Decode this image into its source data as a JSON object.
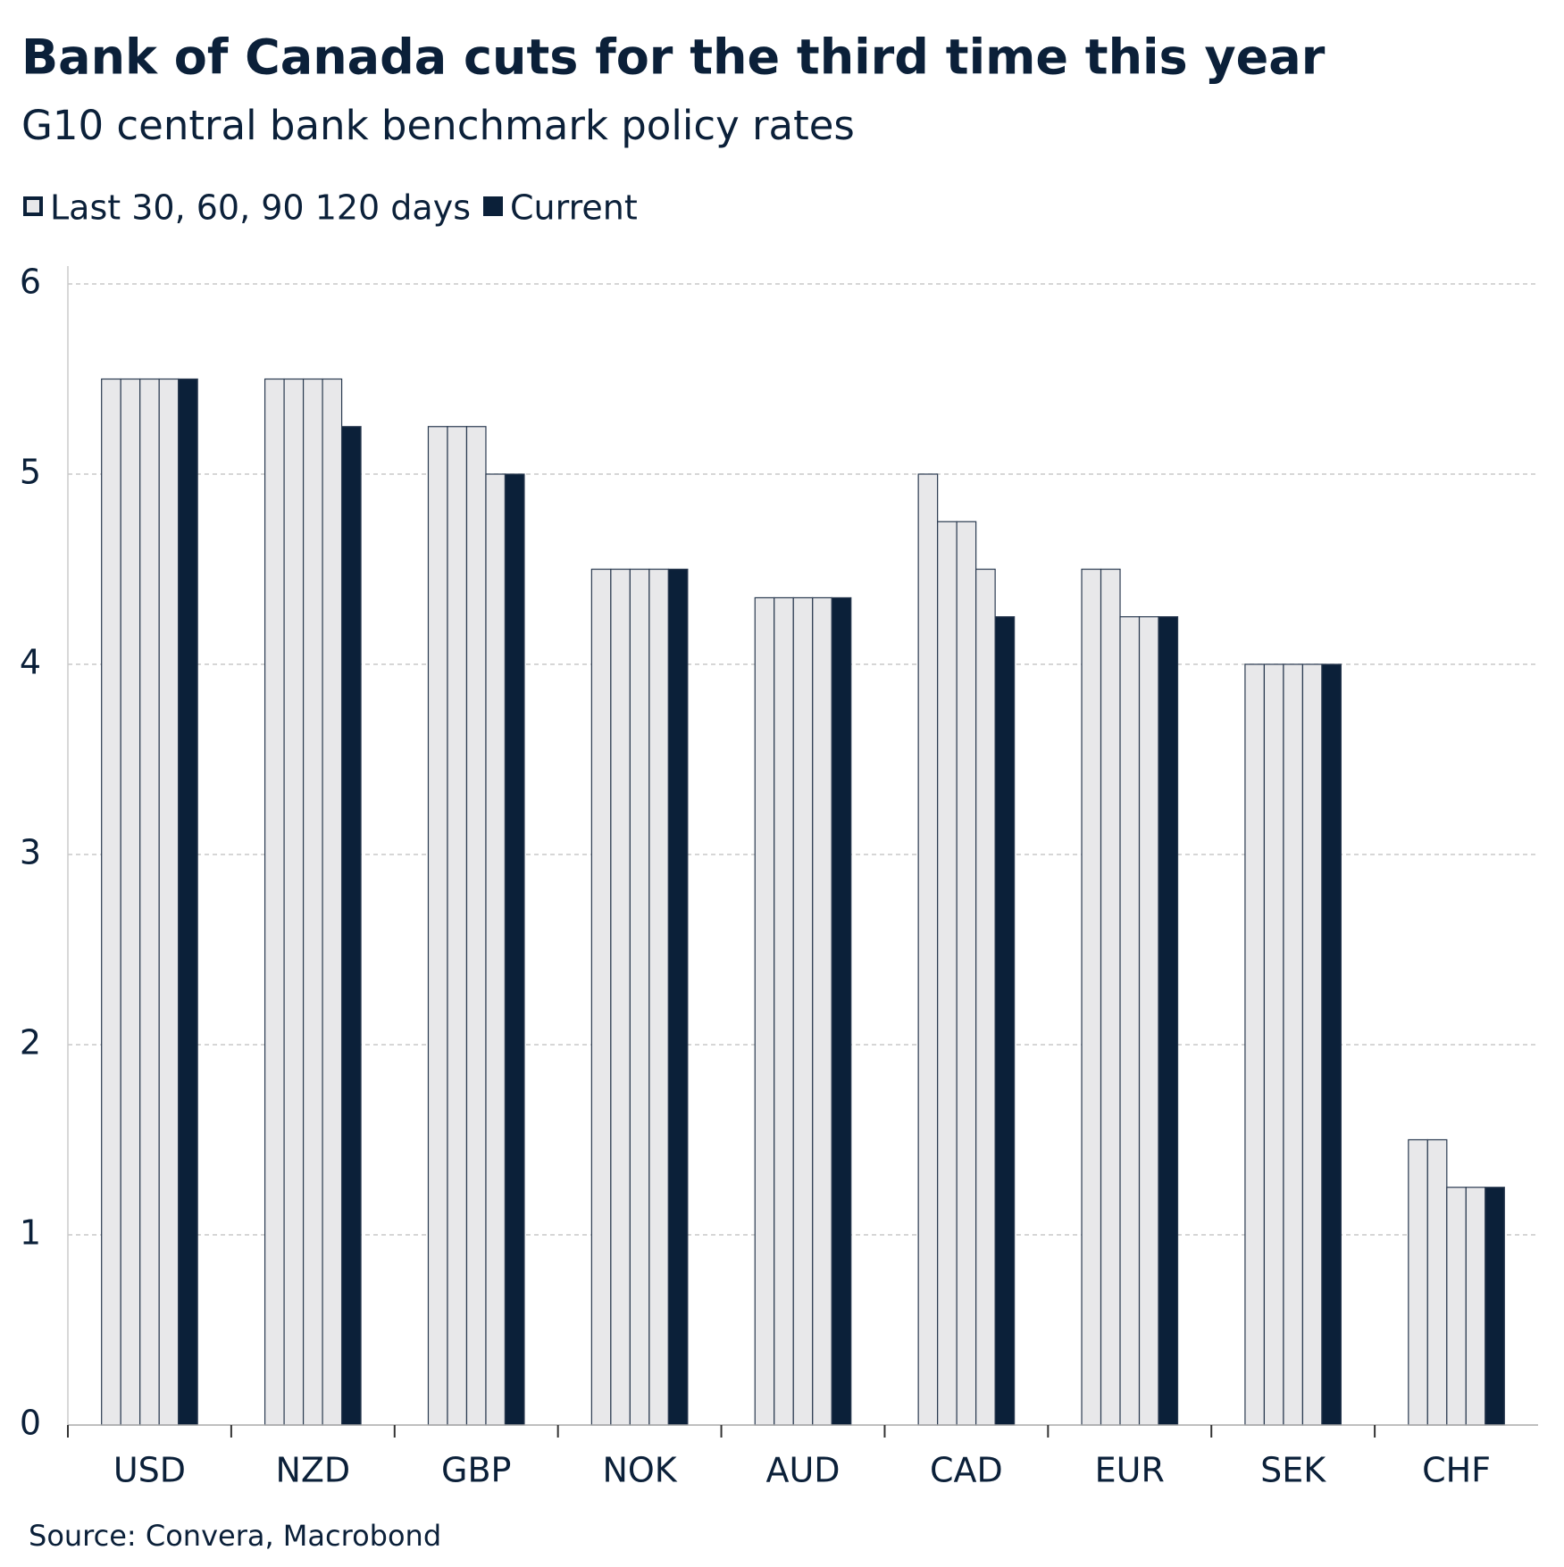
{
  "chart_data": {
    "type": "bar",
    "title": "Bank of Canada cuts for the third time this year",
    "subtitle": "G10 central bank benchmark policy rates",
    "source": "Source: Convera, Macrobond",
    "categories": [
      "USD",
      "NZD",
      "GBP",
      "NOK",
      "AUD",
      "CAD",
      "EUR",
      "SEK",
      "CHF"
    ],
    "series": [
      {
        "name": "Last 30, 60, 90 120 days",
        "color": "#e8e8ea",
        "values": [
          5.5,
          5.5,
          5.25,
          4.5,
          4.35,
          5.0,
          4.5,
          4,
          1.5
        ]
      },
      {
        "color": "#e8e8ea",
        "values": [
          5.5,
          5.5,
          5.25,
          4.5,
          4.35,
          4.75,
          4.5,
          4,
          1.5
        ]
      },
      {
        "color": "#e8e8ea",
        "values": [
          5.5,
          5.5,
          5.25,
          4.5,
          4.35,
          4.75,
          4.25,
          4,
          1.25
        ]
      },
      {
        "color": "#e8e8ea",
        "values": [
          5.5,
          5.5,
          5.0,
          4.5,
          4.35,
          4.5,
          4.25,
          4,
          1.25
        ]
      },
      {
        "name": "Current",
        "color": "#0b2039",
        "values": [
          5.5,
          5.25,
          5.0,
          4.5,
          4.35,
          4.25,
          4.25,
          4,
          1.25
        ]
      }
    ],
    "ylim": [
      0,
      6
    ],
    "yticks": [
      0,
      1,
      2,
      3,
      4,
      5,
      6
    ],
    "grid": true
  }
}
